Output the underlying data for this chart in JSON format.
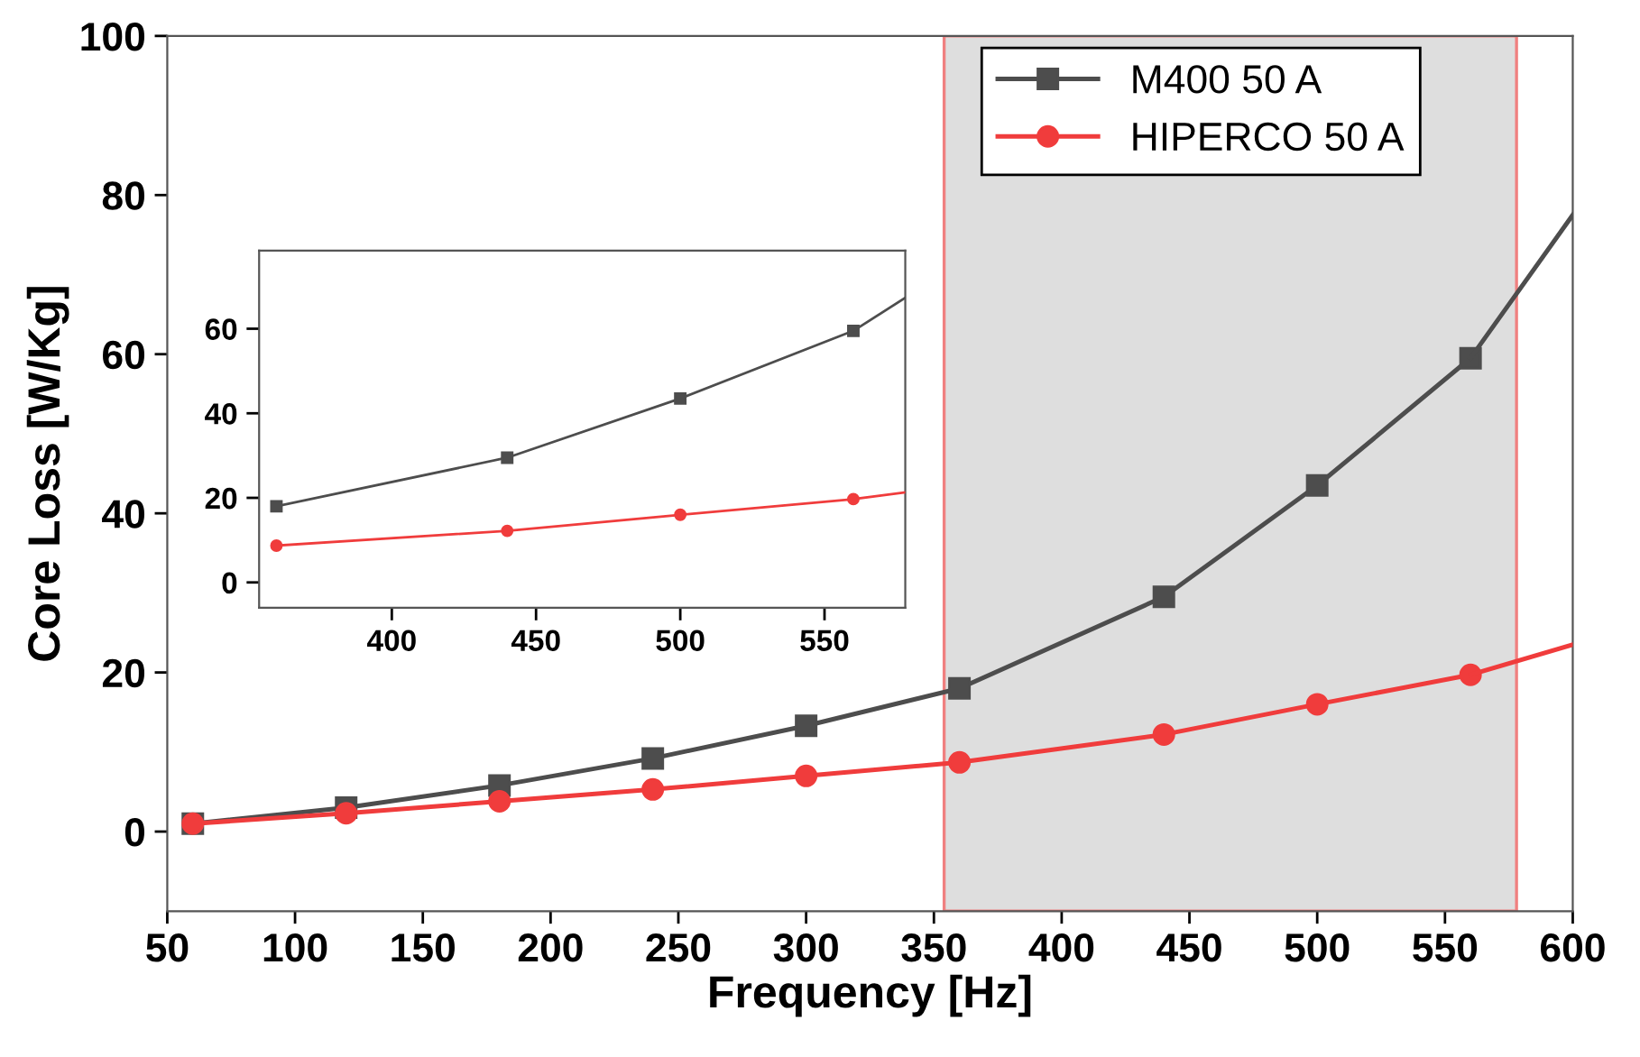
{
  "chart_data": [
    {
      "type": "line",
      "xlabel": "Frequency [Hz]",
      "ylabel": "Core Loss [W/Kg]",
      "xlim": [
        50,
        600
      ],
      "ylim": [
        -10,
        100
      ],
      "xticks": [
        50,
        100,
        150,
        200,
        250,
        300,
        350,
        400,
        450,
        500,
        550,
        600
      ],
      "yticks": [
        0,
        20,
        40,
        60,
        80,
        100
      ],
      "grid": false,
      "legend": "top right",
      "series": [
        {
          "name": "M400 50 A",
          "color": "#4d4d4d",
          "marker": "square",
          "x": [
            60,
            120,
            180,
            240,
            300,
            360,
            440,
            500,
            560
          ],
          "values": [
            1.0,
            3.0,
            5.8,
            9.2,
            13.3,
            18.0,
            29.5,
            43.5,
            59.5
          ]
        },
        {
          "name": "HIPERCO 50 A",
          "color": "#f03c3c",
          "marker": "circle",
          "x": [
            60,
            120,
            180,
            240,
            300,
            360,
            440,
            500,
            560
          ],
          "values": [
            1.0,
            2.3,
            3.8,
            5.3,
            7.0,
            8.7,
            12.2,
            16.0,
            19.7
          ]
        },
        {
          "color": "#4d4d4d",
          "marker": "none",
          "x": [
            560,
            600
          ],
          "values": [
            59.5,
            77.5
          ]
        },
        {
          "color": "#f03c3c",
          "marker": "none",
          "x": [
            560,
            600
          ],
          "values": [
            19.7,
            23.5
          ]
        }
      ],
      "bands": [
        {
          "axis": "x",
          "from": 354,
          "to": 578,
          "color": "#dedede"
        }
      ]
    },
    {
      "type": "line",
      "xlim": [
        354,
        578
      ],
      "ylim": [
        -6,
        78.5
      ],
      "xticks": [
        400,
        450,
        500,
        550
      ],
      "yticks": [
        0,
        20,
        40,
        60
      ],
      "grid": false,
      "series": [
        {
          "color": "#4d4d4d",
          "marker": "square",
          "x": [
            360,
            440,
            500,
            560
          ],
          "values": [
            18.0,
            29.5,
            43.5,
            59.5
          ]
        },
        {
          "color": "#f03c3c",
          "marker": "circle",
          "x": [
            360,
            440,
            500,
            560
          ],
          "values": [
            8.7,
            12.2,
            16.0,
            19.7
          ]
        },
        {
          "color": "#4d4d4d",
          "marker": "none",
          "x": [
            560,
            578
          ],
          "values": [
            59.5,
            67.3
          ]
        },
        {
          "color": "#f03c3c",
          "marker": "none",
          "x": [
            560,
            578
          ],
          "values": [
            19.7,
            21.3
          ]
        }
      ]
    }
  ]
}
